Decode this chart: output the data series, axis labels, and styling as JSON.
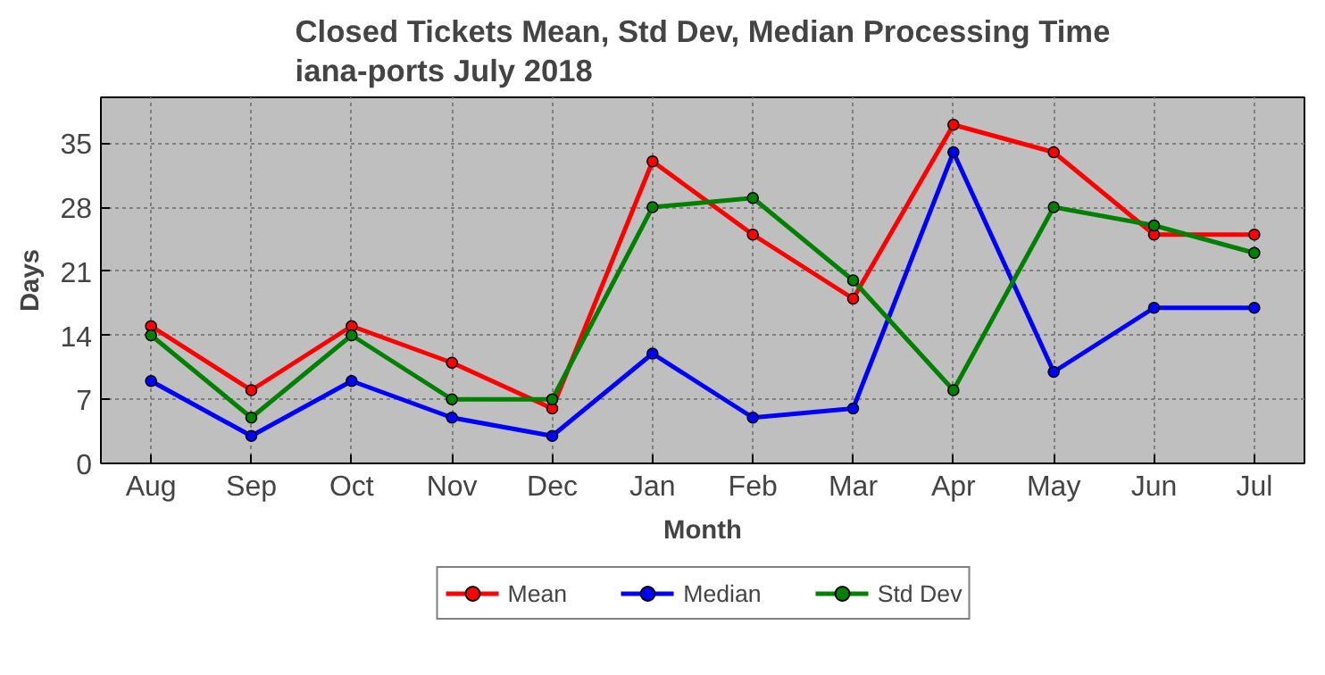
{
  "chart_data": {
    "type": "line",
    "title": "Closed Tickets Mean, Std Dev, Median Processing Time\niana-ports July 2018",
    "xlabel": "Month",
    "ylabel": "Days",
    "categories": [
      "Aug",
      "Sep",
      "Oct",
      "Nov",
      "Dec",
      "Jan",
      "Feb",
      "Mar",
      "Apr",
      "May",
      "Jun",
      "Jul"
    ],
    "series": [
      {
        "name": "Mean",
        "color": "#ff0000",
        "values": [
          15,
          8,
          15,
          11,
          6,
          33,
          25,
          18,
          37,
          34,
          25,
          25
        ]
      },
      {
        "name": "Median",
        "color": "#0000ff",
        "values": [
          9,
          3,
          9,
          5,
          3,
          12,
          5,
          6,
          34,
          10,
          17,
          17
        ]
      },
      {
        "name": "Std Dev",
        "color": "#008000",
        "values": [
          14,
          5,
          14,
          7,
          7,
          28,
          29,
          20,
          8,
          28,
          26,
          23
        ]
      }
    ],
    "ylim": [
      0,
      40
    ],
    "yticks": [
      0,
      7,
      14,
      21,
      28,
      35
    ],
    "grid": true,
    "legend": "bottom",
    "marker": "circle",
    "line_style": "solid"
  }
}
